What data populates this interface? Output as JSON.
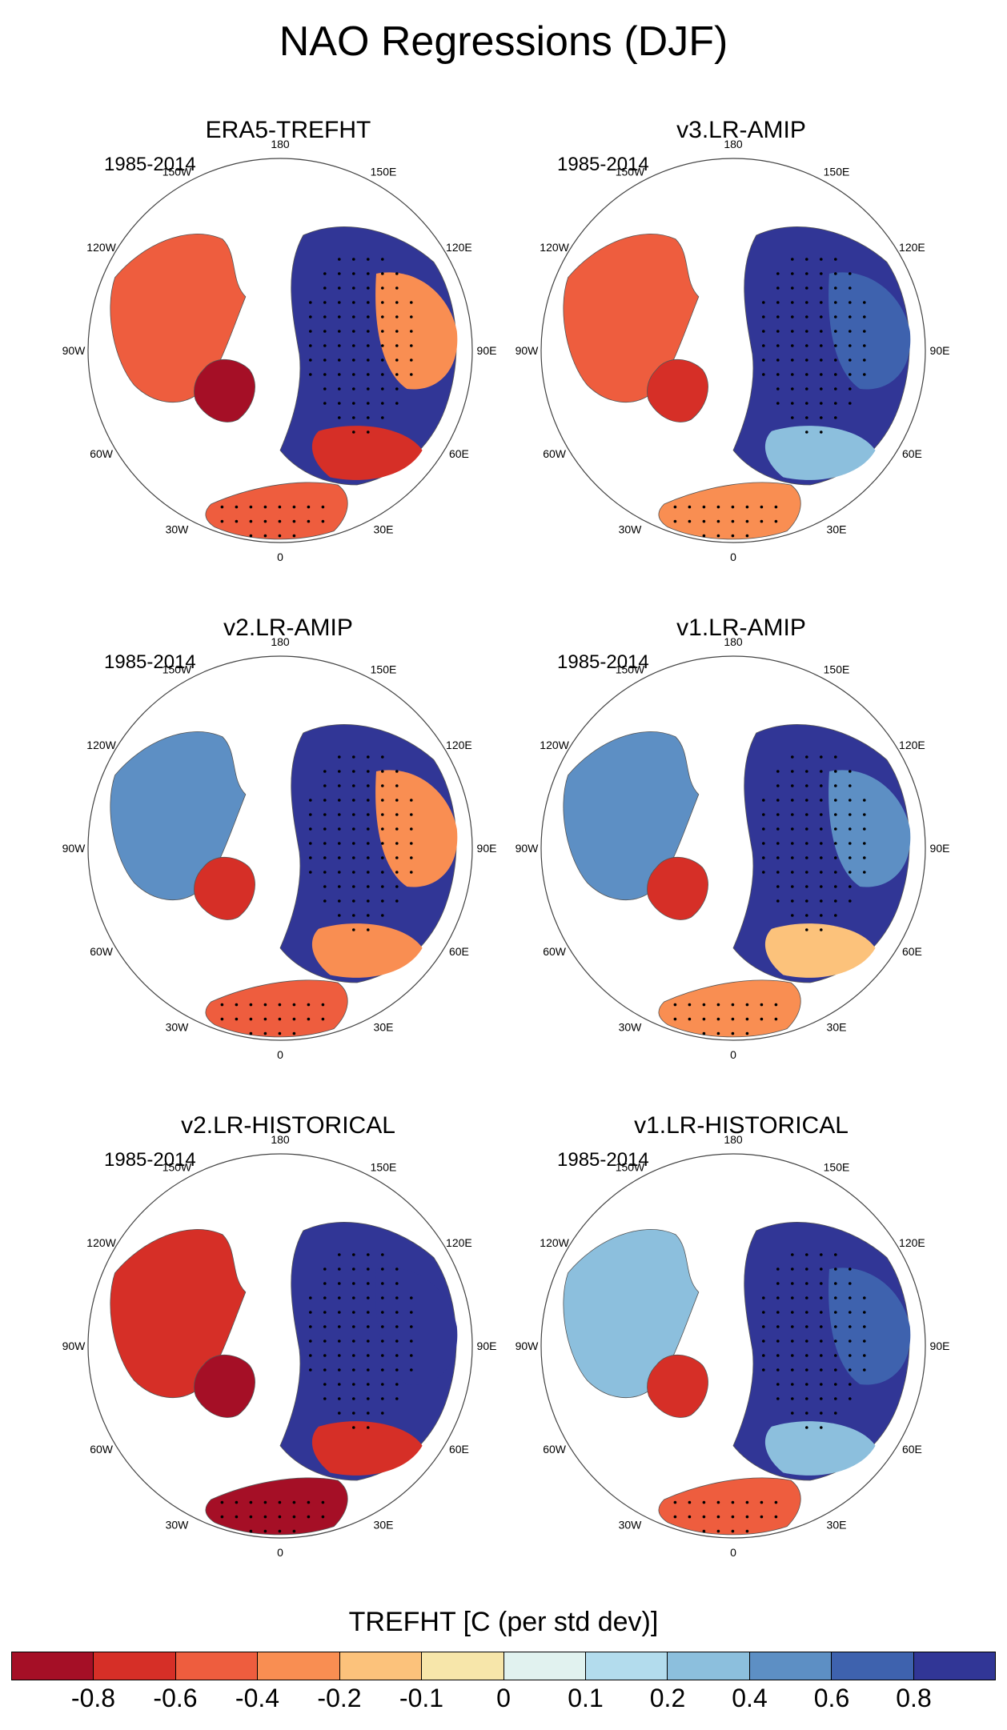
{
  "title": "NAO Regressions (DJF)",
  "panels": [
    {
      "title": "ERA5-TREFHT",
      "period": "1985-2014",
      "pattern": [
        -0.5,
        -0.4,
        -0.9,
        0.9,
        -0.7,
        -0.5
      ]
    },
    {
      "title": "v3.LR-AMIP",
      "period": "1985-2014",
      "pattern": [
        -0.6,
        0.6,
        -0.8,
        0.9,
        0.3,
        -0.4
      ]
    },
    {
      "title": "v2.LR-AMIP",
      "period": "1985-2014",
      "pattern": [
        0.4,
        -0.4,
        -0.8,
        0.9,
        -0.4,
        -0.5
      ]
    },
    {
      "title": "v1.LR-AMIP",
      "period": "1985-2014",
      "pattern": [
        0.4,
        0.5,
        -0.8,
        0.9,
        -0.2,
        -0.3
      ]
    },
    {
      "title": "v2.LR-HISTORICAL",
      "period": "1985-2014",
      "pattern": [
        -0.8,
        0.8,
        -0.9,
        0.9,
        -0.7,
        -0.9
      ]
    },
    {
      "title": "v1.LR-HISTORICAL",
      "period": "1985-2014",
      "pattern": [
        0.3,
        0.7,
        -0.8,
        0.8,
        0.3,
        -0.6
      ]
    }
  ],
  "longitude_labels": [
    "180",
    "150E",
    "120E",
    "90E",
    "60E",
    "30E",
    "0",
    "30W",
    "60W",
    "90W",
    "120W",
    "150W"
  ],
  "colorbar": {
    "title": "TREFHT [C (per std dev)]",
    "labels": [
      "-0.8",
      "-0.6",
      "-0.4",
      "-0.2",
      "-0.1",
      "0",
      "0.1",
      "0.2",
      "0.4",
      "0.6",
      "0.8"
    ],
    "colors": [
      "#a50f26",
      "#d62f27",
      "#ee5d3e",
      "#f98e52",
      "#fcc27b",
      "#f7e6aa",
      "#e1f2ef",
      "#b3dced",
      "#8cbfdd",
      "#5d8fc4",
      "#3e62ae",
      "#313696"
    ]
  }
}
